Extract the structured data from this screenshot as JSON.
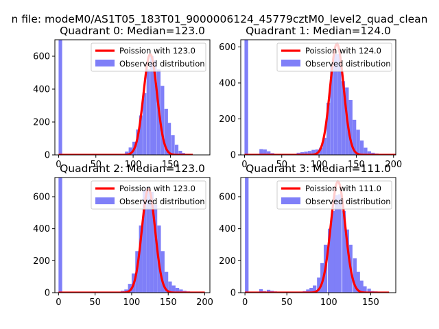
{
  "suptitle": "n file: modeM0/AS1T05_183T01_9000006124_45779cztM0_level2_quad_clean",
  "colors": {
    "hist": "#7f7ff8",
    "poisson": "#ff0000"
  },
  "chart_data": [
    {
      "type": "bar",
      "id": "q0",
      "title": "Quadrant 0: Median=123.0",
      "xlim": [
        -5,
        203
      ],
      "ylim": [
        0,
        700
      ],
      "xticks": [
        0,
        50,
        100,
        150
      ],
      "yticks": [
        0,
        200,
        400,
        600
      ],
      "bin_width": 4.75,
      "bins": [
        [
          0,
          700
        ],
        [
          84,
          5
        ],
        [
          89,
          20
        ],
        [
          94,
          45
        ],
        [
          99,
          80
        ],
        [
          104,
          155
        ],
        [
          108,
          240
        ],
        [
          113,
          375
        ],
        [
          118,
          520
        ],
        [
          123,
          600
        ],
        [
          127,
          575
        ],
        [
          132,
          520
        ],
        [
          137,
          420
        ],
        [
          142,
          280
        ],
        [
          146,
          195
        ],
        [
          151,
          120
        ],
        [
          156,
          62
        ],
        [
          161,
          25
        ],
        [
          165,
          12
        ],
        [
          170,
          5
        ],
        [
          175,
          3
        ]
      ],
      "poisson_mean": 123.0,
      "poisson_peak": 612,
      "poisson_xrange": [
        0,
        180
      ],
      "legend": {
        "poisson": "Poission with 123.0",
        "observed": "Observed distribution"
      }
    },
    {
      "type": "bar",
      "id": "q1",
      "title": "Quadrant 1: Median=124.0",
      "xlim": [
        -5,
        203
      ],
      "ylim": [
        0,
        640
      ],
      "xticks": [
        0,
        50,
        100,
        150,
        200
      ],
      "yticks": [
        0,
        200,
        400,
        600
      ],
      "bin_width": 4.9,
      "bins": [
        [
          0,
          640
        ],
        [
          20,
          32
        ],
        [
          25,
          30
        ],
        [
          30,
          20
        ],
        [
          35,
          10
        ],
        [
          40,
          5
        ],
        [
          45,
          4
        ],
        [
          55,
          3
        ],
        [
          65,
          5
        ],
        [
          70,
          12
        ],
        [
          75,
          15
        ],
        [
          80,
          18
        ],
        [
          85,
          22
        ],
        [
          90,
          28
        ],
        [
          95,
          30
        ],
        [
          100,
          40
        ],
        [
          105,
          95
        ],
        [
          110,
          290
        ],
        [
          115,
          495
        ],
        [
          120,
          560
        ],
        [
          125,
          560
        ],
        [
          130,
          410
        ],
        [
          135,
          375
        ],
        [
          140,
          305
        ],
        [
          145,
          195
        ],
        [
          150,
          140
        ],
        [
          155,
          80
        ],
        [
          160,
          40
        ],
        [
          165,
          20
        ],
        [
          170,
          12
        ],
        [
          175,
          8
        ],
        [
          180,
          5
        ],
        [
          185,
          4
        ],
        [
          190,
          3
        ]
      ],
      "poisson_mean": 124.0,
      "poisson_peak": 618,
      "poisson_xrange": [
        0,
        203
      ],
      "legend": {
        "poisson": "Poission with 124.0",
        "observed": "Observed distribution"
      }
    },
    {
      "type": "bar",
      "id": "q2",
      "title": "Quadrant 2: Median=123.0",
      "xlim": [
        -5,
        207
      ],
      "ylim": [
        0,
        720
      ],
      "xticks": [
        0,
        50,
        100,
        150,
        200
      ],
      "yticks": [
        0,
        200,
        400,
        600
      ],
      "bin_width": 5.0,
      "bins": [
        [
          0,
          720
        ],
        [
          80,
          5
        ],
        [
          85,
          12
        ],
        [
          90,
          20
        ],
        [
          95,
          55
        ],
        [
          100,
          120
        ],
        [
          105,
          260
        ],
        [
          110,
          420
        ],
        [
          115,
          640
        ],
        [
          120,
          660
        ],
        [
          125,
          630
        ],
        [
          130,
          550
        ],
        [
          135,
          420
        ],
        [
          140,
          260
        ],
        [
          145,
          130
        ],
        [
          150,
          70
        ],
        [
          155,
          45
        ],
        [
          160,
          30
        ],
        [
          165,
          20
        ],
        [
          170,
          12
        ],
        [
          175,
          8
        ],
        [
          180,
          5
        ],
        [
          185,
          3
        ],
        [
          190,
          2
        ]
      ],
      "poisson_mean": 123.0,
      "poisson_peak": 650,
      "poisson_xrange": [
        0,
        200
      ],
      "legend": {
        "poisson": "Poission with 123.0",
        "observed": "Observed distribution"
      }
    },
    {
      "type": "bar",
      "id": "q3",
      "title": "Quadrant 3: Median=111.0",
      "xlim": [
        -5,
        180
      ],
      "ylim": [
        0,
        720
      ],
      "xticks": [
        0,
        50,
        100,
        150
      ],
      "yticks": [
        0,
        200,
        400,
        600
      ],
      "bin_width": 4.3,
      "bins": [
        [
          0,
          720
        ],
        [
          17,
          22
        ],
        [
          21,
          10
        ],
        [
          26,
          18
        ],
        [
          30,
          12
        ],
        [
          34,
          8
        ],
        [
          38,
          5
        ],
        [
          43,
          3
        ],
        [
          47,
          5
        ],
        [
          56,
          5
        ],
        [
          60,
          5
        ],
        [
          64,
          5
        ],
        [
          69,
          10
        ],
        [
          73,
          20
        ],
        [
          77,
          30
        ],
        [
          81,
          45
        ],
        [
          86,
          95
        ],
        [
          90,
          185
        ],
        [
          94,
          300
        ],
        [
          99,
          400
        ],
        [
          103,
          510
        ],
        [
          107,
          610
        ],
        [
          111,
          615
        ],
        [
          116,
          510
        ],
        [
          120,
          395
        ],
        [
          124,
          300
        ],
        [
          129,
          215
        ],
        [
          133,
          130
        ],
        [
          137,
          75
        ],
        [
          141,
          40
        ],
        [
          146,
          25
        ],
        [
          150,
          10
        ],
        [
          154,
          8
        ],
        [
          159,
          5
        ],
        [
          163,
          3
        ]
      ],
      "poisson_mean": 111.0,
      "poisson_peak": 695,
      "poisson_xrange": [
        0,
        172
      ],
      "legend": {
        "poisson": "Poission with 111.0",
        "observed": "Observed distribution"
      }
    }
  ]
}
